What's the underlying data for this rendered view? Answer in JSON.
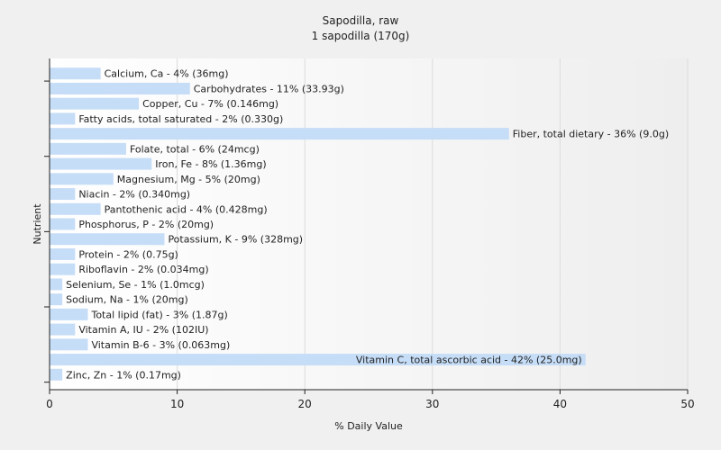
{
  "chart_data": {
    "type": "bar",
    "orientation": "horizontal",
    "title": "Sapodilla, raw",
    "subtitle": "1 sapodilla (170g)",
    "xlabel": "% Daily Value",
    "ylabel": "Nutrient",
    "xlim": [
      0,
      50
    ],
    "x_ticks": [
      0,
      10,
      20,
      30,
      40,
      50
    ],
    "grid": "vertical",
    "bar_color": "#c6ddf7",
    "categories": [
      "Calcium, Ca",
      "Carbohydrates",
      "Copper, Cu",
      "Fatty acids, total saturated",
      "Fiber, total dietary",
      "Folate, total",
      "Iron, Fe",
      "Magnesium, Mg",
      "Niacin",
      "Pantothenic acid",
      "Phosphorus, P",
      "Potassium, K",
      "Protein",
      "Riboflavin",
      "Selenium, Se",
      "Sodium, Na",
      "Total lipid (fat)",
      "Vitamin A, IU",
      "Vitamin B-6",
      "Vitamin C, total ascorbic acid",
      "Zinc, Zn"
    ],
    "values": [
      4,
      11,
      7,
      2,
      36,
      6,
      8,
      5,
      2,
      4,
      2,
      9,
      2,
      2,
      1,
      1,
      3,
      2,
      3,
      42,
      1
    ],
    "labels": [
      "Calcium, Ca - 4% (36mg)",
      "Carbohydrates - 11% (33.93g)",
      "Copper, Cu - 7% (0.146mg)",
      "Fatty acids, total saturated - 2% (0.330g)",
      "Fiber, total dietary - 36% (9.0g)",
      "Folate, total - 6% (24mcg)",
      "Iron, Fe - 8% (1.36mg)",
      "Magnesium, Mg - 5% (20mg)",
      "Niacin - 2% (0.340mg)",
      "Pantothenic acid - 4% (0.428mg)",
      "Phosphorus, P - 2% (20mg)",
      "Potassium, K - 9% (328mg)",
      "Protein - 2% (0.75g)",
      "Riboflavin - 2% (0.034mg)",
      "Selenium, Se - 1% (1.0mcg)",
      "Sodium, Na - 1% (20mg)",
      "Total lipid (fat) - 3% (1.87g)",
      "Vitamin A, IU - 2% (102IU)",
      "Vitamin B-6 - 3% (0.063mg)",
      "Vitamin C, total ascorbic acid - 42% (25.0mg)",
      "Zinc, Zn - 1% (0.17mg)"
    ]
  }
}
